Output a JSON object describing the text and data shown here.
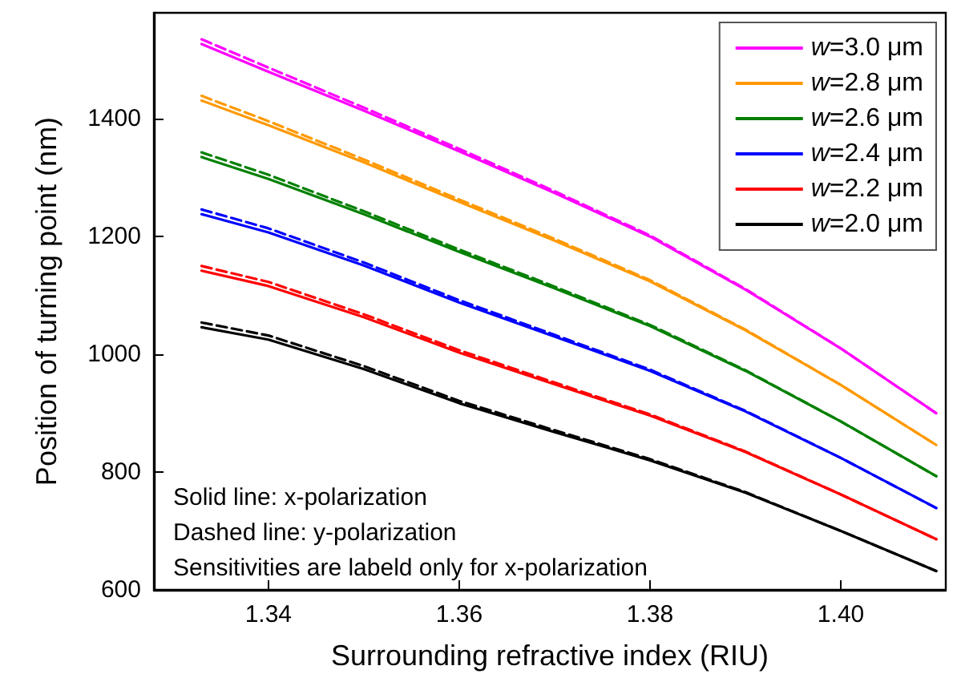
{
  "chart_data": {
    "type": "line",
    "xlabel": "Surrounding refractive index (RIU)",
    "ylabel": "Position of turning point (nm)",
    "x": [
      1.333,
      1.34,
      1.35,
      1.36,
      1.37,
      1.38,
      1.39,
      1.4,
      1.41
    ],
    "xlim": [
      1.328,
      1.411
    ],
    "xticks": [
      1.34,
      1.36,
      1.38,
      {
        "value": 1.4,
        "label": "1.40"
      }
    ],
    "ylim": [
      600,
      1580
    ],
    "yticks": [
      600,
      800,
      1000,
      1200,
      1400
    ],
    "grid": false,
    "legend": "top right",
    "marker": "none",
    "annotations": [
      "Solid line: x-polarization",
      "Dashed line: y-polarization",
      "Sensitivities are labeld only for x-polarization"
    ],
    "series": [
      {
        "name": "w=3.0 μm",
        "color": "#ff00ff",
        "line_style": "solid",
        "values": [
          1527,
          1480,
          1414,
          1345,
          1274,
          1200,
          1110,
          1010,
          900
        ]
      },
      {
        "color": "#ff00ff",
        "line_style": "dashed",
        "values": [
          1535,
          1487,
          1419,
          1349,
          1277,
          1202,
          1111,
          1010,
          900
        ]
      },
      {
        "name": "w=2.8 μm",
        "color": "#ff9900",
        "line_style": "solid",
        "values": [
          1431,
          1389,
          1326,
          1259,
          1193,
          1124,
          1041,
          948,
          846
        ]
      },
      {
        "color": "#ff9900",
        "line_style": "dashed",
        "values": [
          1439,
          1396,
          1331,
          1263,
          1196,
          1126,
          1042,
          948,
          846
        ]
      },
      {
        "name": "w=2.6 μm",
        "color": "#008000",
        "line_style": "solid",
        "values": [
          1335,
          1298,
          1238,
          1174,
          1112,
          1048,
          972,
          886,
          793
        ]
      },
      {
        "color": "#008000",
        "line_style": "dashed",
        "values": [
          1343,
          1305,
          1243,
          1178,
          1115,
          1050,
          973,
          886,
          793
        ]
      },
      {
        "name": "w=2.4 μm",
        "color": "#0000ff",
        "line_style": "solid",
        "values": [
          1238,
          1207,
          1151,
          1088,
          1030,
          972,
          903,
          824,
          739
        ]
      },
      {
        "color": "#0000ff",
        "line_style": "dashed",
        "values": [
          1246,
          1214,
          1156,
          1092,
          1033,
          974,
          904,
          824,
          739
        ]
      },
      {
        "name": "w=2.2 μm",
        "color": "#ff0000",
        "line_style": "solid",
        "values": [
          1142,
          1116,
          1063,
          1003,
          949,
          896,
          834,
          762,
          686
        ]
      },
      {
        "color": "#ff0000",
        "line_style": "dashed",
        "values": [
          1150,
          1123,
          1068,
          1007,
          952,
          898,
          835,
          762,
          686
        ]
      },
      {
        "name": "w=2.0 μm",
        "color": "#000000",
        "line_style": "solid",
        "values": [
          1046,
          1025,
          975,
          917,
          868,
          820,
          765,
          700,
          632
        ]
      },
      {
        "color": "#000000",
        "line_style": "dashed",
        "values": [
          1054,
          1032,
          980,
          921,
          871,
          822,
          766,
          700,
          632
        ]
      }
    ]
  }
}
